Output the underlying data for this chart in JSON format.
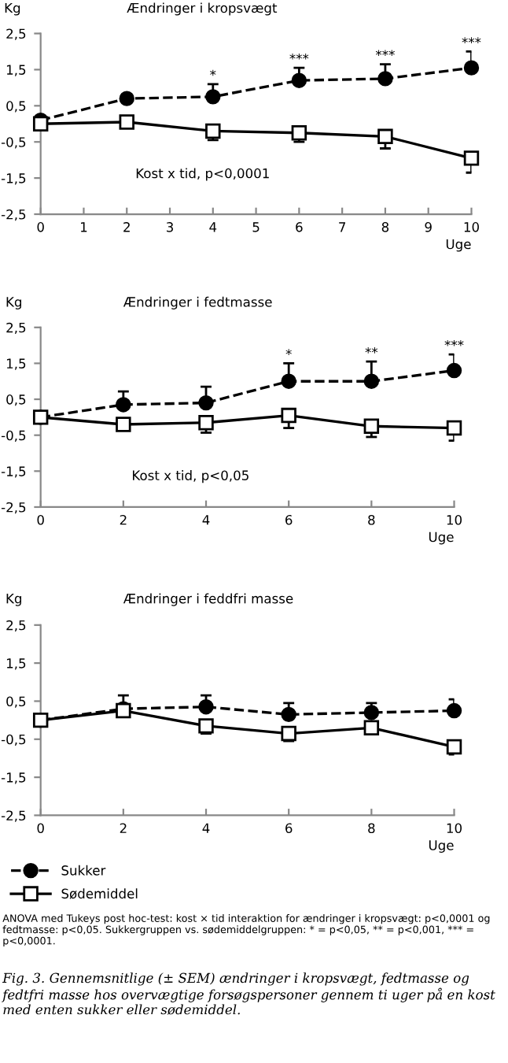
{
  "chart_data": [
    {
      "type": "line",
      "title": "Ændringer i kropsvægt",
      "ylabel": "Kg",
      "xlabel": "Uge",
      "x": [
        0,
        2,
        4,
        6,
        8,
        10
      ],
      "series": [
        {
          "color": "#000000",
          "marker": "circle",
          "line_style": "dashed",
          "values": [
            0.1,
            0.7,
            0.75,
            1.2,
            1.25,
            1.55
          ],
          "errors": [
            null,
            null,
            [
              0.75,
              1.1
            ],
            [
              1.2,
              1.55
            ],
            [
              1.25,
              1.65
            ],
            [
              1.55,
              2.0
            ]
          ]
        },
        {
          "color": "#000000",
          "marker": "square",
          "line_style": "solid",
          "values": [
            0,
            0.05,
            -0.2,
            -0.25,
            -0.35,
            -0.95
          ],
          "errors": [
            null,
            null,
            [
              -0.45,
              -0.2
            ],
            [
              -0.5,
              -0.25
            ],
            [
              -0.68,
              -0.35
            ],
            [
              -1.35,
              -0.95
            ]
          ]
        }
      ],
      "xlim": [
        0,
        10
      ],
      "xticks": [
        0,
        1,
        2,
        3,
        4,
        5,
        6,
        7,
        8,
        9,
        10
      ],
      "ylim": [
        -2.5,
        2.5
      ],
      "yticks": [
        {
          "value": 2.5,
          "label": "2,5"
        },
        {
          "value": 1.5,
          "label": "1,5"
        },
        {
          "value": 0.5,
          "label": "0,5"
        },
        {
          "value": -0.5,
          "label": "-0,5"
        },
        {
          "value": -1.5,
          "label": "-1,5"
        },
        {
          "value": -2.5,
          "label": "-2,5"
        }
      ],
      "grid": false,
      "legend": false,
      "annotations": [
        "Kost x tid, p<0,0001",
        {
          "text": "*",
          "x": 4,
          "y": 1.15
        },
        {
          "text": "***",
          "x": 6,
          "y": 1.6
        },
        {
          "text": "***",
          "x": 8,
          "y": 1.7
        },
        {
          "text": "***",
          "x": 10,
          "y": 2.05
        }
      ]
    },
    {
      "type": "line",
      "title": "Ændringer i fedtmasse",
      "ylabel": "Kg",
      "xlabel": "Uge",
      "x": [
        0,
        2,
        4,
        6,
        8,
        10
      ],
      "series": [
        {
          "color": "#000000",
          "marker": "circle",
          "line_style": "dashed",
          "values": [
            0,
            0.35,
            0.4,
            1.0,
            1.0,
            1.3
          ],
          "errors": [
            null,
            [
              0.35,
              0.72
            ],
            [
              0.4,
              0.85
            ],
            [
              1.0,
              1.5
            ],
            [
              1.0,
              1.55
            ],
            [
              1.3,
              1.75
            ]
          ]
        },
        {
          "color": "#000000",
          "marker": "square",
          "line_style": "solid",
          "values": [
            0,
            -0.2,
            -0.15,
            0.05,
            -0.25,
            -0.3
          ],
          "errors": [
            null,
            null,
            [
              -0.43,
              -0.15
            ],
            [
              -0.3,
              0.05
            ],
            [
              -0.55,
              -0.25
            ],
            [
              -0.65,
              -0.3
            ]
          ]
        }
      ],
      "xlim": [
        0,
        10
      ],
      "xticks": [
        0,
        2,
        4,
        6,
        8,
        10
      ],
      "ylim": [
        -2.5,
        2.5
      ],
      "yticks": [
        {
          "value": 2.5,
          "label": "2,5"
        },
        {
          "value": 1.5,
          "label": "1,5"
        },
        {
          "value": 0.5,
          "label": "0,5"
        },
        {
          "value": -0.5,
          "label": "-0,5"
        },
        {
          "value": -1.5,
          "label": "-1,5"
        },
        {
          "value": -2.5,
          "label": "-2,5"
        }
      ],
      "grid": false,
      "legend": false,
      "annotations": [
        "Kost x tid, p<0,05",
        {
          "text": "*",
          "x": 6,
          "y": 1.55
        },
        {
          "text": "**",
          "x": 8,
          "y": 1.6
        },
        {
          "text": "***",
          "x": 10,
          "y": 1.8
        }
      ]
    },
    {
      "type": "line",
      "title": "Ændringer i feddfri masse",
      "ylabel": "Kg",
      "xlabel": "Uge",
      "x": [
        0,
        2,
        4,
        6,
        8,
        10
      ],
      "series": [
        {
          "name": "Sukker",
          "color": "#000000",
          "marker": "circle",
          "line_style": "dashed",
          "values": [
            0,
            0.3,
            0.35,
            0.15,
            0.2,
            0.25
          ],
          "errors": [
            null,
            [
              0.3,
              0.65
            ],
            [
              0.35,
              0.65
            ],
            [
              0.15,
              0.45
            ],
            [
              0.2,
              0.45
            ],
            [
              0.25,
              0.55
            ]
          ]
        },
        {
          "name": "Sødemiddel",
          "color": "#000000",
          "marker": "square",
          "line_style": "solid",
          "values": [
            0,
            0.25,
            -0.15,
            -0.35,
            -0.2,
            -0.7
          ],
          "errors": [
            null,
            null,
            [
              -0.35,
              -0.15
            ],
            [
              -0.55,
              -0.35
            ],
            null,
            [
              -0.9,
              -0.7
            ]
          ]
        }
      ],
      "xlim": [
        0,
        10
      ],
      "xticks": [
        0,
        2,
        4,
        6,
        8,
        10
      ],
      "ylim": [
        -2.5,
        2.5
      ],
      "yticks": [
        {
          "value": 2.5,
          "label": "2,5"
        },
        {
          "value": 1.5,
          "label": "1,5"
        },
        {
          "value": 0.5,
          "label": "0,5"
        },
        {
          "value": -0.5,
          "label": "-0,5"
        },
        {
          "value": -1.5,
          "label": "-1,5"
        },
        {
          "value": -2.5,
          "label": "-2,5"
        }
      ],
      "grid": false,
      "legend": "bottom left",
      "annotations": [
        "ANOVA med Tukeys post hoc-test: kost × tid interaktion for ændringer i kropsvægt: p<0,0001 og fedtmasse: p<0,05. Sukkergruppen vs. sødemiddelgruppen: * = p<0,05, ** = p<0,001, *** = p<0,0001.",
        "Fig. 3. Gennemsnitlige (± SEM) ændringer i kropsvægt, fedtmasse og fedtfri masse hos overvægtige forsøgspersoner gennem ti uger på en kost med enten sukker eller sødemiddel."
      ]
    }
  ]
}
